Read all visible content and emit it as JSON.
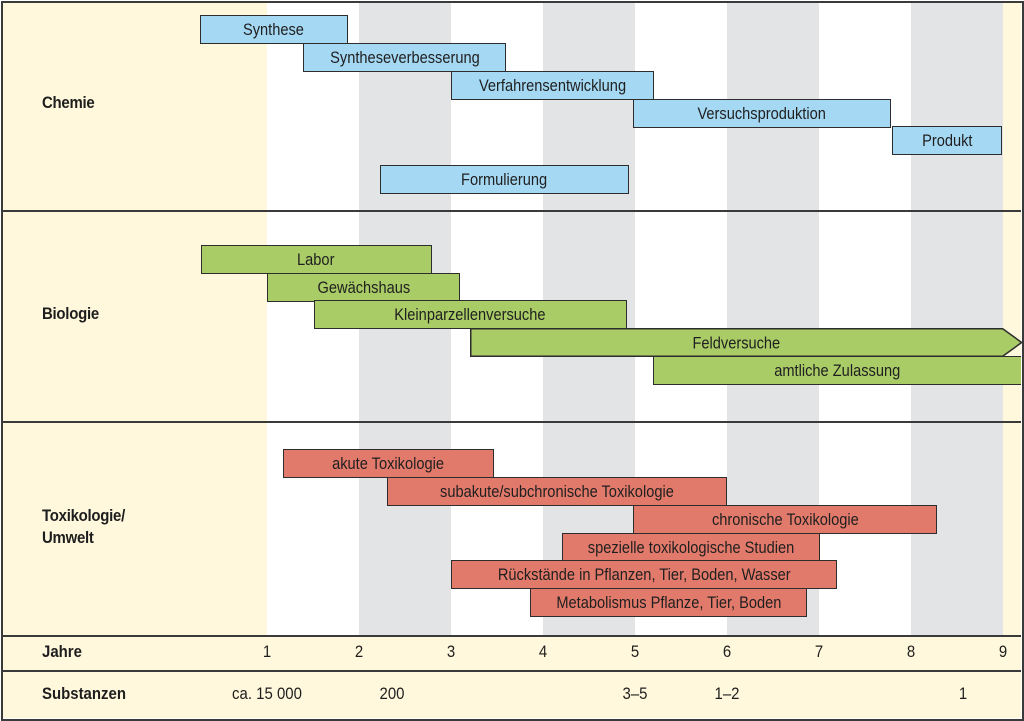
{
  "colors": {
    "label_column_bg": "#fff8dc",
    "band_gray": "#e3e4e6",
    "band_white": "#ffffff",
    "chemie_bar": "#a5d8f3",
    "biologie_bar": "#a9cc67",
    "toxikologie_bar": "#e27a6b",
    "border": "#3a3a3a"
  },
  "sections": [
    {
      "id": "chemie",
      "label": "Chemie"
    },
    {
      "id": "biologie",
      "label": "Biologie"
    },
    {
      "id": "toxikologie",
      "label": "Toxikologie/\nUmwelt",
      "label_line1": "Toxikologie/",
      "label_line2": "Umwelt"
    }
  ],
  "chart_data": {
    "type": "gantt",
    "title": "",
    "xlabel": "Jahre",
    "x_range": [
      0,
      9
    ],
    "x_ticks": [
      "1",
      "2",
      "3",
      "4",
      "5",
      "6",
      "7",
      "8",
      "9"
    ],
    "groups": [
      {
        "name": "Chemie",
        "tasks": [
          {
            "label": "Synthese",
            "start": 0.27,
            "end": 1.88
          },
          {
            "label": "Syntheseverbesserung",
            "start": 1.39,
            "end": 3.6
          },
          {
            "label": "Verfahrensentwicklung",
            "start": 3.0,
            "end": 5.21
          },
          {
            "label": "Versuchsproduktion",
            "start": 4.98,
            "end": 7.78
          },
          {
            "label": "Produkt",
            "start": 7.79,
            "end": 8.99
          },
          {
            "label": "Formulierung",
            "start": 2.23,
            "end": 4.93
          }
        ]
      },
      {
        "name": "Biologie",
        "tasks": [
          {
            "label": "Labor",
            "start": 0.28,
            "end": 2.79
          },
          {
            "label": "Gewächshaus",
            "start": 1.0,
            "end": 3.1
          },
          {
            "label": "Kleinparzellenversuche",
            "start": 1.51,
            "end": 4.91
          },
          {
            "label": "Feldversuche",
            "start": 3.21,
            "end": 9.2,
            "open_ended": true
          },
          {
            "label": "amtliche Zulassung",
            "start": 5.2,
            "end": 9.2
          }
        ]
      },
      {
        "name": "Toxikologie/Umwelt",
        "tasks": [
          {
            "label": "akute Toxikologie",
            "start": 1.17,
            "end": 3.47
          },
          {
            "label": "subakute/subchronische Toxikologie",
            "start": 2.3,
            "end": 6.0
          },
          {
            "label": "chronische Toxikologie",
            "start": 4.98,
            "end": 8.28
          },
          {
            "label": "spezielle toxikologische Studien",
            "start": 4.21,
            "end": 7.01
          },
          {
            "label": "Rückstände in Pflanzen, Tier, Boden, Wasser",
            "start": 3.0,
            "end": 7.2
          },
          {
            "label": "Metabolismus Pflanze, Tier, Boden",
            "start": 3.86,
            "end": 6.87
          }
        ]
      }
    ],
    "rows": [
      {
        "label": "Jahre",
        "values": [
          {
            "x": 1,
            "text": "1"
          },
          {
            "x": 2,
            "text": "2"
          },
          {
            "x": 3,
            "text": "3"
          },
          {
            "x": 4,
            "text": "4"
          },
          {
            "x": 5,
            "text": "5"
          },
          {
            "x": 6,
            "text": "6"
          },
          {
            "x": 7,
            "text": "7"
          },
          {
            "x": 8,
            "text": "8"
          },
          {
            "x": 9,
            "text": "9"
          }
        ]
      },
      {
        "label": "Substanzen",
        "values": [
          {
            "x": 1,
            "text": "ca. 15 000"
          },
          {
            "x": 2.36,
            "text": "200"
          },
          {
            "x": 5.0,
            "text": "3–5"
          },
          {
            "x": 6.0,
            "text": "1–2"
          },
          {
            "x": 8.56,
            "text": "1"
          }
        ]
      }
    ]
  }
}
